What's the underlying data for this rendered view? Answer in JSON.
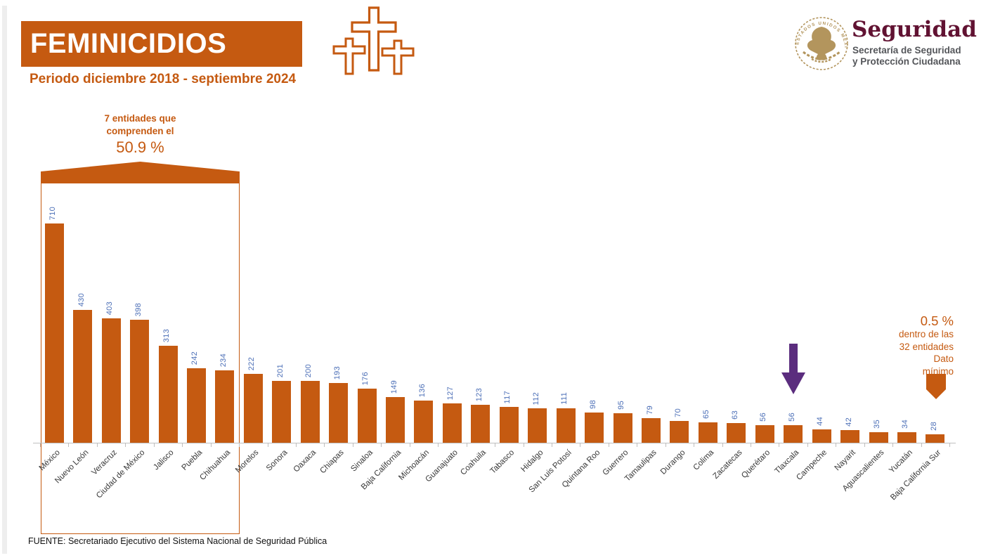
{
  "header": {
    "title": "FEMINICIDIOS",
    "subtitle": "Periodo diciembre 2018 - septiembre 2024",
    "logo": {
      "brand": "Seguridad",
      "dept_line1": "Secretaría de Seguridad",
      "dept_line2": "y Protección Ciudadana",
      "seal_text": "ESTADOS UNIDOS MEXICANOS"
    }
  },
  "annotations": {
    "group": {
      "line1": "7 entidades que",
      "line2": "comprenden el",
      "pct": "50.9 %"
    },
    "min_note": {
      "pct": "0.5 %",
      "line2": "dentro de las",
      "line3": "32 entidades",
      "line4": "Dato",
      "line5": "mínimo"
    }
  },
  "footer": {
    "source": "FUENTE: Secretariado Ejecutivo del Sistema Nacional de Seguridad Pública"
  },
  "colors": {
    "orange": "#C55A11",
    "value_label_blue": "#4C6FB7",
    "highlight_purple": "#5B2D7E",
    "brand_guinda": "#611232",
    "seal_gold": "#B3955D",
    "axis_gray": "#BFBFBF"
  },
  "chart_data": {
    "type": "bar",
    "title": "FEMINICIDIOS — Periodo diciembre 2018 - septiembre 2024",
    "xlabel": "",
    "ylabel": "",
    "ylim": [
      0,
      710
    ],
    "grid": false,
    "legend": "none",
    "categories": [
      "México",
      "Nuevo León",
      "Veracruz",
      "Ciudad de México",
      "Jalisco",
      "Puebla",
      "Chihuahua",
      "Morelos",
      "Sonora",
      "Oaxaca",
      "Chiapas",
      "Sinaloa",
      "Baja California",
      "Michoacán",
      "Guanajuato",
      "Coahuila",
      "Tabasco",
      "Hidalgo",
      "San Luis Potosí",
      "Quintana Roo",
      "Guerrero",
      "Tamaulipas",
      "Durango",
      "Colima",
      "Zacatecas",
      "Querétaro",
      "Tlaxcala",
      "Campeche",
      "Nayarit",
      "Aguascalientes",
      "Yucatán",
      "Baja California Sur"
    ],
    "values": [
      710,
      430,
      403,
      398,
      313,
      242,
      234,
      222,
      201,
      200,
      193,
      176,
      149,
      136,
      127,
      123,
      117,
      112,
      111,
      98,
      95,
      79,
      70,
      65,
      63,
      56,
      56,
      44,
      42,
      35,
      34,
      28
    ],
    "grouped_top7": {
      "count": 7,
      "share_pct": "50.9 %"
    },
    "purple_arrow_category": "Tlaxcala",
    "min_arrow_category": "Baja California Sur"
  }
}
